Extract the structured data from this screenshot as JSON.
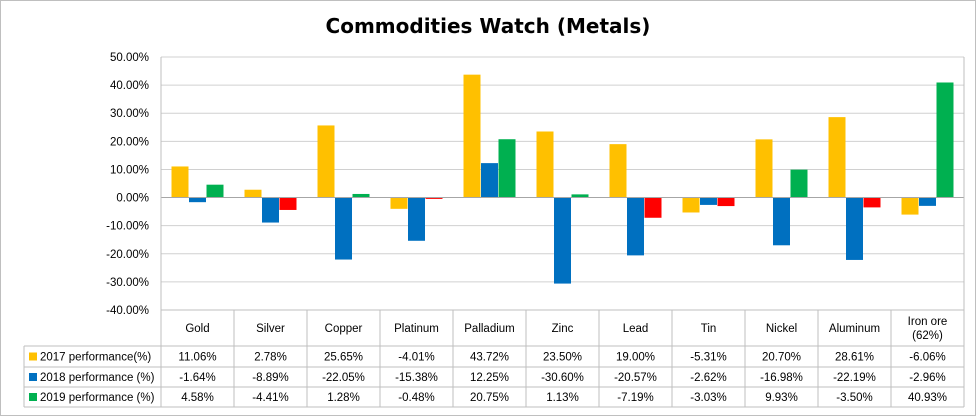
{
  "chart_data": {
    "type": "bar",
    "title": "Commodities Watch (Metals)",
    "categories": [
      "Gold",
      "Silver",
      "Copper",
      "Platinum",
      "Palladium",
      "Zinc",
      "Lead",
      "Tin",
      "Nickel",
      "Aluminum",
      "Iron ore (62%)"
    ],
    "category_lines": [
      [
        "Gold"
      ],
      [
        "Silver"
      ],
      [
        "Copper"
      ],
      [
        "Platinum"
      ],
      [
        "Palladium"
      ],
      [
        "Zinc"
      ],
      [
        "Lead"
      ],
      [
        "Tin"
      ],
      [
        "Nickel"
      ],
      [
        "Aluminum"
      ],
      [
        "Iron ore",
        "(62%)"
      ]
    ],
    "ylim": [
      -40,
      50
    ],
    "yticks": [
      "50.00%",
      "40.00%",
      "30.00%",
      "20.00%",
      "10.00%",
      "0.00%",
      "-10.00%",
      "-20.00%",
      "-30.00%",
      "-40.00%"
    ],
    "grid": true,
    "legend": "data-table-left",
    "series": [
      {
        "name": "2017 performance(%)",
        "color": "#FFC000",
        "values": [
          11.06,
          2.78,
          25.65,
          -4.01,
          43.72,
          23.5,
          19.0,
          -5.31,
          20.7,
          28.61,
          -6.06
        ],
        "labels": [
          "11.06%",
          "2.78%",
          "25.65%",
          "-4.01%",
          "43.72%",
          "23.50%",
          "19.00%",
          "-5.31%",
          "20.70%",
          "28.61%",
          "-6.06%"
        ]
      },
      {
        "name": "2018 performance (%)",
        "color": "#0070C0",
        "values": [
          -1.64,
          -8.89,
          -22.05,
          -15.38,
          12.25,
          -30.6,
          -20.57,
          -2.62,
          -16.98,
          -22.19,
          -2.96
        ],
        "labels": [
          "-1.64%",
          "-8.89%",
          "-22.05%",
          "-15.38%",
          "12.25%",
          "-30.60%",
          "-20.57%",
          "-2.62%",
          "-16.98%",
          "-22.19%",
          "-2.96%"
        ]
      },
      {
        "name": "2019 performance (%)",
        "color": "#00B050",
        "negative_color": "#FF0000",
        "values": [
          4.58,
          -4.41,
          1.28,
          -0.48,
          20.75,
          1.13,
          -7.19,
          -3.03,
          9.93,
          -3.5,
          40.93
        ],
        "labels": [
          "4.58%",
          "-4.41%",
          "1.28%",
          "-0.48%",
          "20.75%",
          "1.13%",
          "-7.19%",
          "-3.03%",
          "9.93%",
          "-3.50%",
          "40.93%"
        ]
      }
    ]
  }
}
